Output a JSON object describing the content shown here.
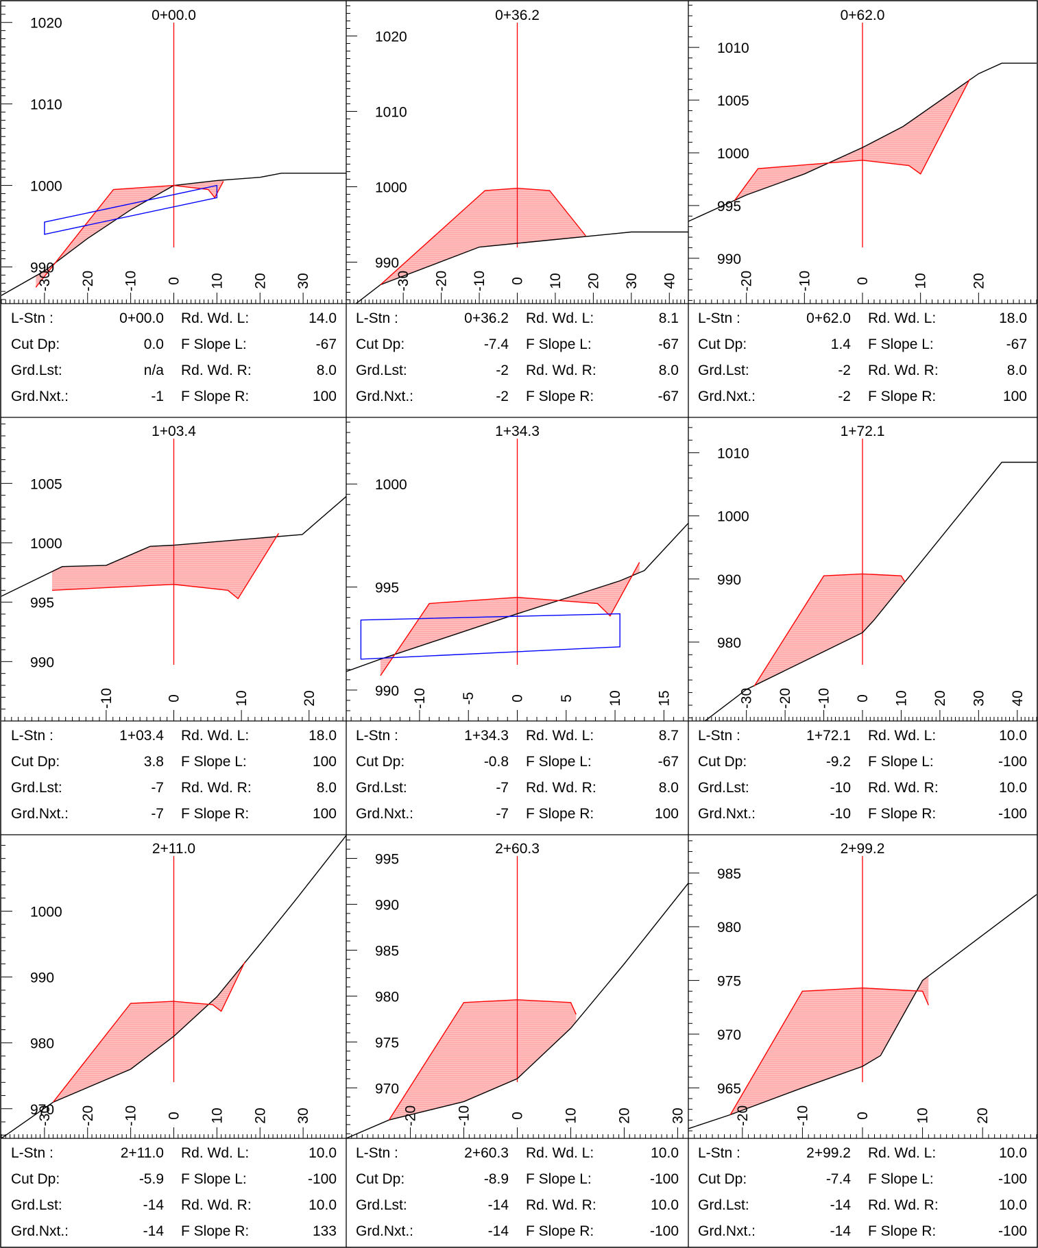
{
  "info_labels": {
    "l_stn": "L-Stn :",
    "cut_dp": "Cut Dp:",
    "grd_lst": "Grd.Lst:",
    "grd_nxt": "Grd.Nxt.:",
    "rd_wd_l": "Rd. Wd. L:",
    "f_slope_l": "F Slope L:",
    "rd_wd_r": "Rd. Wd. R:",
    "f_slope_r": "F Slope R:"
  },
  "colors": {
    "ground": "#000000",
    "design": "#ff0000",
    "fill_area": "#ffbcbc",
    "structure": "#0000ff",
    "grid": "#000000"
  },
  "chart_data": [
    {
      "type": "line",
      "title": "0+00.0",
      "xlim": [
        -40,
        40
      ],
      "ylim": [
        985.5,
        1022.5
      ],
      "xticks": [
        -30,
        -20,
        -10,
        0,
        10,
        20,
        30
      ],
      "yticks": [
        990,
        1000,
        1010,
        1020
      ],
      "series": [
        {
          "role": "ground",
          "points": [
            [
              -40,
              986.5
            ],
            [
              -30,
              989.5
            ],
            [
              -20,
              993.5
            ],
            [
              -10,
              997
            ],
            [
              0,
              1000
            ],
            [
              10,
              1000.6
            ],
            [
              20,
              1001
            ],
            [
              25,
              1001.5
            ],
            [
              40,
              1001.5
            ]
          ]
        },
        {
          "role": "design",
          "points": [
            [
              -32,
              987.5
            ],
            [
              -14,
              999.5
            ],
            [
              0,
              1000
            ],
            [
              8,
              999.5
            ],
            [
              9.5,
              998.5
            ],
            [
              11.5,
              1000.5
            ]
          ]
        },
        {
          "role": "structure",
          "points": [
            [
              -30,
              995.5
            ],
            [
              10,
              1000
            ],
            [
              10,
              998.5
            ],
            [
              -30,
              994
            ]
          ]
        }
      ],
      "info": {
        "l_stn": "0+00.0",
        "cut_dp": "0.0",
        "grd_lst": "n/a",
        "grd_nxt": "-1",
        "rd_wd_l": "14.0",
        "f_slope_l": "-67",
        "rd_wd_r": "8.0",
        "f_slope_r": "100"
      }
    },
    {
      "type": "line",
      "title": "0+36.2",
      "xlim": [
        -45,
        45
      ],
      "ylim": [
        984.5,
        1024.5
      ],
      "xticks": [
        -30,
        -20,
        -10,
        0,
        10,
        20,
        30,
        40
      ],
      "yticks": [
        990,
        1000,
        1010,
        1020
      ],
      "series": [
        {
          "role": "ground",
          "points": [
            [
              -45,
              983.5
            ],
            [
              -36,
              987
            ],
            [
              -10,
              992
            ],
            [
              0,
              992.5
            ],
            [
              10,
              993
            ],
            [
              30,
              994
            ],
            [
              45,
              994
            ]
          ]
        },
        {
          "role": "design",
          "points": [
            [
              -36,
              987
            ],
            [
              -8.5,
              999.5
            ],
            [
              0,
              999.8
            ],
            [
              8.5,
              999.5
            ],
            [
              18,
              993.5
            ]
          ]
        }
      ],
      "info": {
        "l_stn": "0+36.2",
        "cut_dp": "-7.4",
        "grd_lst": "-2",
        "grd_nxt": "-2",
        "rd_wd_l": "8.1",
        "f_slope_l": "-67",
        "rd_wd_r": "8.0",
        "f_slope_r": "-67"
      }
    },
    {
      "type": "line",
      "title": "0+62.0",
      "xlim": [
        -30,
        30
      ],
      "ylim": [
        985.7,
        1014.3
      ],
      "xticks": [
        -20,
        -10,
        0,
        10,
        20
      ],
      "yticks": [
        990,
        995,
        1000,
        1005,
        1010
      ],
      "series": [
        {
          "role": "ground",
          "points": [
            [
              -30,
              993.5
            ],
            [
              -20,
              996
            ],
            [
              -10,
              998
            ],
            [
              0,
              1000.5
            ],
            [
              7,
              1002.5
            ],
            [
              20,
              1007.5
            ],
            [
              24,
              1008.5
            ],
            [
              30,
              1008.5
            ]
          ]
        },
        {
          "role": "design",
          "points": [
            [
              -22,
              995.5
            ],
            [
              -18,
              998.5
            ],
            [
              0,
              999.3
            ],
            [
              8,
              998.8
            ],
            [
              10,
              998
            ],
            [
              18.5,
              1007
            ]
          ]
        }
      ],
      "info": {
        "l_stn": "0+62.0",
        "cut_dp": "1.4",
        "grd_lst": "-2",
        "grd_nxt": "-2",
        "rd_wd_l": "18.0",
        "f_slope_l": "-67",
        "rd_wd_r": "8.0",
        "f_slope_r": "100"
      }
    },
    {
      "type": "line",
      "title": "1+03.4",
      "xlim": [
        -25.5,
        25.5
      ],
      "ylim": [
        985,
        1010.5
      ],
      "xticks": [
        -10,
        0,
        10,
        20
      ],
      "yticks": [
        990,
        995,
        1000,
        1005
      ],
      "series": [
        {
          "role": "ground",
          "points": [
            [
              -25.5,
              995.5
            ],
            [
              -16.5,
              998
            ],
            [
              -10,
              998.1
            ],
            [
              -3.5,
              999.7
            ],
            [
              0,
              999.8
            ],
            [
              19,
              1000.7
            ],
            [
              25.5,
              1003.9
            ]
          ]
        },
        {
          "role": "design",
          "points": [
            [
              -18,
              996
            ],
            [
              0,
              996.5
            ],
            [
              8,
              996
            ],
            [
              9.5,
              995.3
            ],
            [
              15.5,
              1000.8
            ]
          ]
        }
      ],
      "info": {
        "l_stn": "1+03.4",
        "cut_dp": "3.8",
        "grd_lst": "-7",
        "grd_nxt": "-7",
        "rd_wd_l": "18.0",
        "f_slope_l": "100",
        "rd_wd_r": "8.0",
        "f_slope_r": "100"
      }
    },
    {
      "type": "line",
      "title": "1+34.3",
      "xlim": [
        -17.5,
        17.5
      ],
      "ylim": [
        988.5,
        1003.2
      ],
      "xticks": [
        -10,
        -5,
        0,
        5,
        10,
        15
      ],
      "yticks": [
        990,
        995,
        1000
      ],
      "series": [
        {
          "role": "ground",
          "points": [
            [
              -17.5,
              990.9
            ],
            [
              -14,
              991.5
            ],
            [
              0,
              993.7
            ],
            [
              10.5,
              995.3
            ],
            [
              13,
              995.8
            ],
            [
              17.5,
              998.1
            ]
          ]
        },
        {
          "role": "design",
          "points": [
            [
              -14,
              990.7
            ],
            [
              -9,
              994.2
            ],
            [
              0,
              994.5
            ],
            [
              8.2,
              994.2
            ],
            [
              9.5,
              993.6
            ],
            [
              12.5,
              996.2
            ]
          ]
        },
        {
          "role": "structure",
          "points": [
            [
              -16,
              993.4
            ],
            [
              10.5,
              993.7
            ],
            [
              10.5,
              992.1
            ],
            [
              -16,
              991.5
            ]
          ]
        }
      ],
      "info": {
        "l_stn": "1+34.3",
        "cut_dp": "-0.8",
        "grd_lst": "-7",
        "grd_nxt": "-7",
        "rd_wd_l": "8.7",
        "f_slope_l": "-67",
        "rd_wd_r": "8.0",
        "f_slope_r": "100"
      }
    },
    {
      "type": "line",
      "title": "1+72.1",
      "xlim": [
        -45,
        45
      ],
      "ylim": [
        967.5,
        1015.5
      ],
      "xticks": [
        -30,
        -20,
        -10,
        0,
        10,
        20,
        30,
        40
      ],
      "yticks": [
        980,
        990,
        1000,
        1010
      ],
      "series": [
        {
          "role": "ground",
          "points": [
            [
              -45,
              965.5
            ],
            [
              -30,
              972.5
            ],
            [
              -10,
              978.5
            ],
            [
              0,
              981.5
            ],
            [
              3,
              983.5
            ],
            [
              36,
              1008.5
            ],
            [
              45,
              1008.5
            ]
          ]
        },
        {
          "role": "design",
          "points": [
            [
              -28,
              973
            ],
            [
              -10,
              990.5
            ],
            [
              0,
              990.8
            ],
            [
              10,
              990.5
            ],
            [
              11,
              989.5
            ]
          ]
        }
      ],
      "info": {
        "l_stn": "1+72.1",
        "cut_dp": "-9.2",
        "grd_lst": "-10",
        "grd_nxt": "-10",
        "rd_wd_l": "10.0",
        "f_slope_l": "-100",
        "rd_wd_r": "10.0",
        "f_slope_r": "-100"
      }
    },
    {
      "type": "line",
      "title": "2+11.0",
      "xlim": [
        -40,
        40
      ],
      "ylim": [
        965.5,
        1011.5
      ],
      "xticks": [
        -30,
        -20,
        -10,
        0,
        10,
        20,
        30
      ],
      "yticks": [
        970,
        980,
        990,
        1000
      ],
      "series": [
        {
          "role": "ground",
          "points": [
            [
              -40,
              965.5
            ],
            [
              -28,
              971
            ],
            [
              -10,
              976
            ],
            [
              0,
              981
            ],
            [
              10,
              987
            ],
            [
              20,
              995
            ],
            [
              28,
              1001.5
            ],
            [
              40,
              1011.5
            ]
          ]
        },
        {
          "role": "design",
          "points": [
            [
              -28,
              971
            ],
            [
              -10,
              986
            ],
            [
              0,
              986.3
            ],
            [
              9,
              985.8
            ],
            [
              11,
              984.8
            ],
            [
              16.5,
              992.3
            ]
          ]
        }
      ],
      "info": {
        "l_stn": "2+11.0",
        "cut_dp": "-5.9",
        "grd_lst": "-14",
        "grd_nxt": "-14",
        "rd_wd_l": "10.0",
        "f_slope_l": "-100",
        "rd_wd_r": "10.0",
        "f_slope_r": "133"
      }
    },
    {
      "type": "line",
      "title": "2+60.3",
      "xlim": [
        -32,
        32
      ],
      "ylim": [
        964.5,
        997.5
      ],
      "xticks": [
        -20,
        -10,
        0,
        10,
        20,
        30
      ],
      "yticks": [
        970,
        975,
        980,
        985,
        990,
        995
      ],
      "series": [
        {
          "role": "ground",
          "points": [
            [
              -32,
              964.5
            ],
            [
              -24,
              966.5
            ],
            [
              -10,
              968.5
            ],
            [
              0,
              971
            ],
            [
              10,
              976.5
            ],
            [
              20,
              983.5
            ],
            [
              32,
              992.3
            ]
          ]
        },
        {
          "role": "design",
          "points": [
            [
              -24,
              966.5
            ],
            [
              -10,
              979.3
            ],
            [
              0,
              979.6
            ],
            [
              10,
              979.3
            ],
            [
              11,
              978
            ]
          ]
        }
      ],
      "info": {
        "l_stn": "2+60.3",
        "cut_dp": "-8.9",
        "grd_lst": "-14",
        "grd_nxt": "-14",
        "rd_wd_l": "10.0",
        "f_slope_l": "-100",
        "rd_wd_r": "10.0",
        "f_slope_r": "-100"
      }
    },
    {
      "type": "line",
      "title": "2+99.2",
      "xlim": [
        -29,
        29
      ],
      "ylim": [
        960.3,
        988.5
      ],
      "xticks": [
        -20,
        -10,
        0,
        10,
        20
      ],
      "yticks": [
        965,
        970,
        975,
        980,
        985
      ],
      "series": [
        {
          "role": "ground",
          "points": [
            [
              -29,
              961.2
            ],
            [
              -22,
              962.5
            ],
            [
              -10,
              965
            ],
            [
              0,
              967
            ],
            [
              3,
              968
            ],
            [
              10,
              975
            ],
            [
              29,
              983
            ]
          ]
        },
        {
          "role": "design",
          "points": [
            [
              -22,
              962.5
            ],
            [
              -10,
              974
            ],
            [
              0,
              974.3
            ],
            [
              10,
              974
            ],
            [
              11,
              972.7
            ]
          ]
        }
      ],
      "info": {
        "l_stn": "2+99.2",
        "cut_dp": "-7.4",
        "grd_lst": "-14",
        "grd_nxt": "-14",
        "rd_wd_l": "10.0",
        "f_slope_l": "-100",
        "rd_wd_r": "10.0",
        "f_slope_r": "-100"
      }
    }
  ]
}
